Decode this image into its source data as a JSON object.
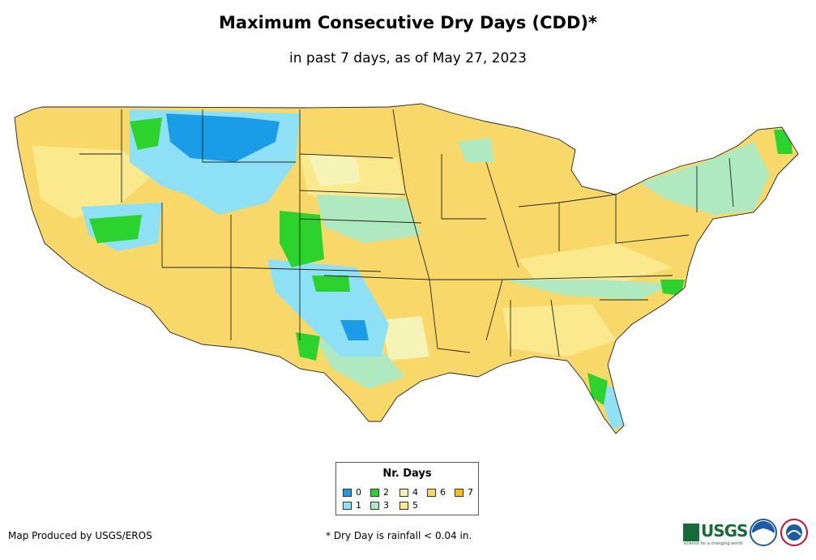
{
  "title": "Maximum Consecutive Dry Days (CDD)*",
  "subtitle": "in past 7 days, as of May 27, 2023",
  "legend": {
    "title": "Nr. Days",
    "items": [
      {
        "label": "0",
        "color": "#1a9ce6"
      },
      {
        "label": "1",
        "color": "#8ee1f5"
      },
      {
        "label": "2",
        "color": "#2dd32d"
      },
      {
        "label": "3",
        "color": "#aee9c0"
      },
      {
        "label": "4",
        "color": "#f6f3b7"
      },
      {
        "label": "5",
        "color": "#fbe98d"
      },
      {
        "label": "6",
        "color": "#f9d86a"
      },
      {
        "label": "7",
        "color": "#f6c21a"
      }
    ]
  },
  "footer": {
    "credit": "Map Produced by USGS/EROS",
    "note": "* Dry Day is rainfall < 0.04 in."
  },
  "logos": {
    "usgs": {
      "text": "USGS",
      "tagline": "science for a changing world",
      "color": "#156b3a"
    },
    "noaa": {
      "text": "noaa",
      "color": "#1f5aa6"
    },
    "nws": {
      "text": "NATIONAL WEATHER SERVICE",
      "color": "#c8102e"
    }
  },
  "map": {
    "base_color": "#f9d86a",
    "outline_color": "#222222"
  }
}
